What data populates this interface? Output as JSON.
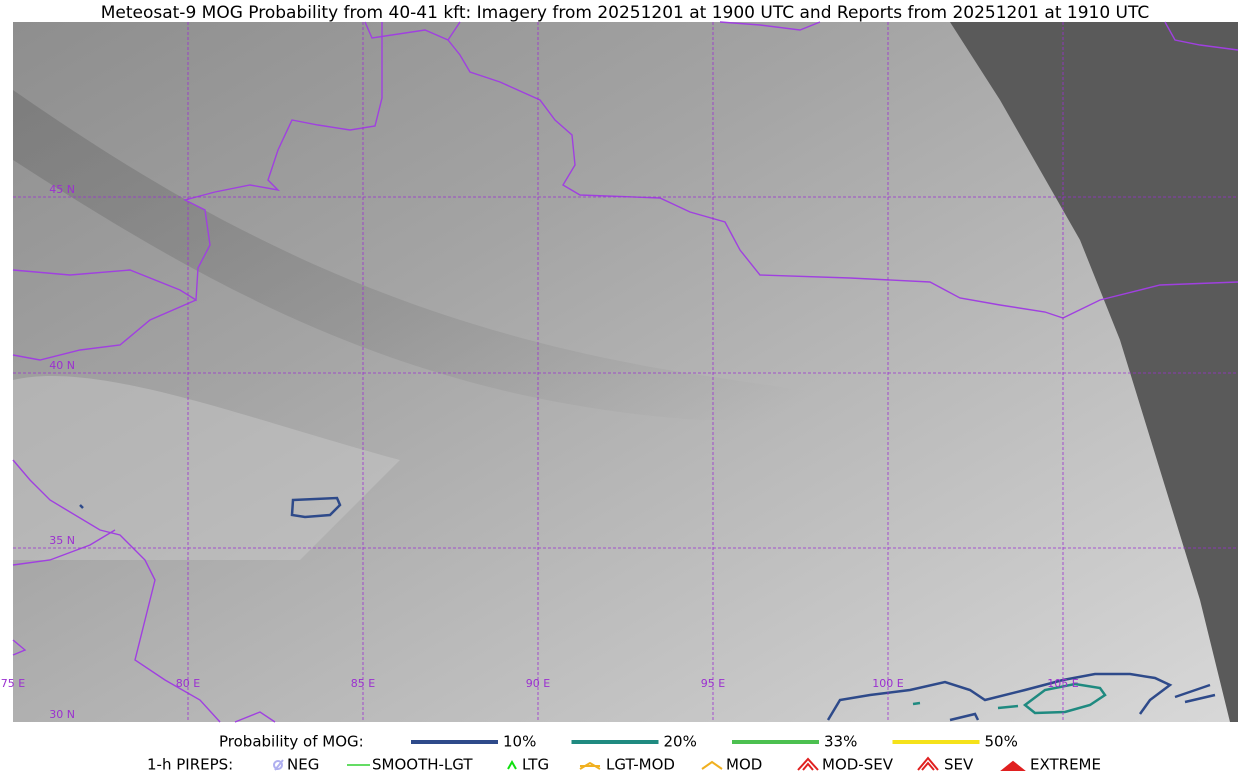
{
  "title": "Meteosat-9 MOG Probability from 40-41 kft: Imagery from 20251201 at 1900 UTC and Reports from 20251201 at 1910 UTC",
  "map": {
    "lat_labels": [
      "45 N",
      "40 N",
      "35 N",
      "30 N"
    ],
    "lon_labels": [
      "75 E",
      "80 E",
      "85 E",
      "90 E",
      "95 E",
      "100 E",
      "105 E"
    ]
  },
  "legend": {
    "mog_label": "Probability of MOG:",
    "mog_levels": [
      {
        "label": "10%",
        "color": "#2e4a8a"
      },
      {
        "label": "20%",
        "color": "#1f8a80"
      },
      {
        "label": "33%",
        "color": "#4cc050"
      },
      {
        "label": "50%",
        "color": "#f5e21a"
      }
    ],
    "pirep_label": "1-h PIREPS:",
    "pireps": [
      {
        "label": "NEG",
        "color": "#b0b0f0"
      },
      {
        "label": "SMOOTH-LGT",
        "color": "#30d030"
      },
      {
        "label": "LTG",
        "color": "#10e010"
      },
      {
        "label": "LGT-MOD",
        "color": "#f0b020"
      },
      {
        "label": "MOD",
        "color": "#f0b020"
      },
      {
        "label": "MOD-SEV",
        "color": "#e02020"
      },
      {
        "label": "SEV",
        "color": "#e02020"
      },
      {
        "label": "EXTREME",
        "color": "#e02020"
      }
    ]
  }
}
